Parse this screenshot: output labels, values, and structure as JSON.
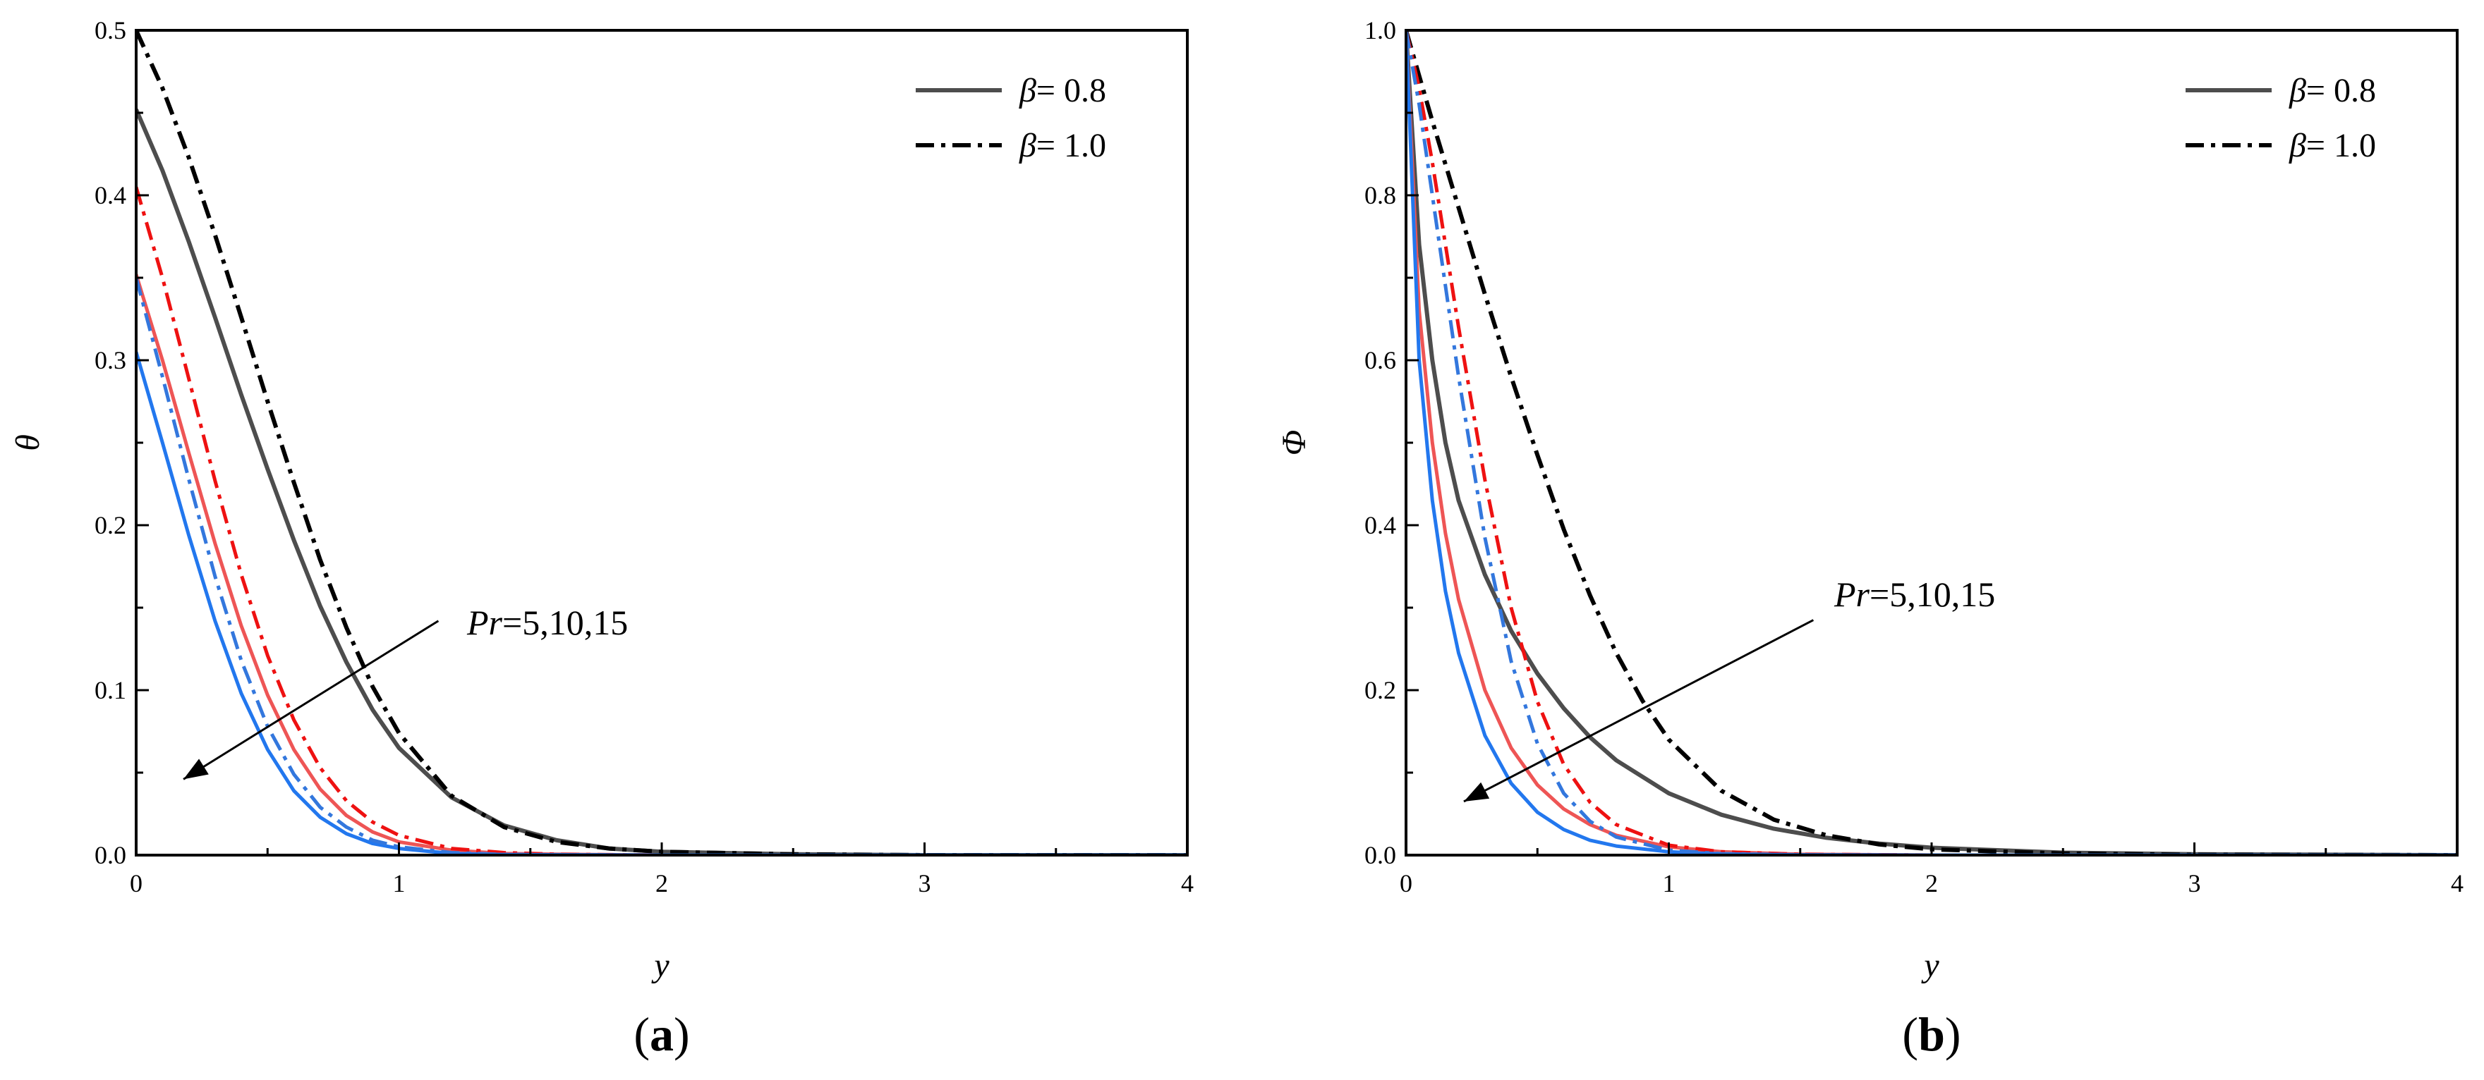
{
  "colors": {
    "gray": "#4d4d4d",
    "black": "#000000",
    "red_dash": "#ee1111",
    "red_solid": "#ee5555",
    "blue_dash": "#3377dd",
    "blue_solid": "#2277ee"
  },
  "chart_data": [
    {
      "type": "line",
      "panel_label": "(a)",
      "xlabel": "y",
      "ylabel": "θ",
      "xlim": [
        0,
        4
      ],
      "ylim": [
        0,
        0.5
      ],
      "xticks": [
        0,
        1,
        2,
        3,
        4
      ],
      "yticks": [
        0,
        0.1,
        0.2,
        0.3,
        0.4,
        0.5
      ],
      "xtick_labels": [
        "0",
        "1",
        "2",
        "3",
        "4"
      ],
      "ytick_labels": [
        "0.0",
        "0.1",
        "0.2",
        "0.3",
        "0.4",
        "0.5"
      ],
      "legend": {
        "position": "top-right",
        "entries": [
          {
            "symbol": "β",
            "text": "= 0.8",
            "style": "solid"
          },
          {
            "symbol": "β",
            "text": "= 1.0",
            "style": "dashdot"
          }
        ]
      },
      "annotation": {
        "text_italic": "Pr",
        "text": "=5,10,15",
        "arrow_from": [
          1.15,
          0.142
        ],
        "arrow_to": [
          0.18,
          0.046
        ]
      },
      "series": [
        {
          "style": "solid",
          "color": "gray",
          "x": [
            0,
            0.1,
            0.2,
            0.3,
            0.4,
            0.5,
            0.6,
            0.7,
            0.8,
            0.9,
            1.0,
            1.2,
            1.4,
            1.6,
            1.8,
            2.0,
            2.5,
            3.0,
            4.0
          ],
          "values": [
            0.452,
            0.415,
            0.372,
            0.326,
            0.279,
            0.234,
            0.191,
            0.151,
            0.117,
            0.088,
            0.065,
            0.035,
            0.018,
            0.009,
            0.004,
            0.002,
            0.0005,
            0,
            0
          ]
        },
        {
          "style": "dashdot",
          "color": "black",
          "x": [
            0,
            0.1,
            0.2,
            0.3,
            0.4,
            0.5,
            0.6,
            0.7,
            0.8,
            0.9,
            1.0,
            1.2,
            1.4,
            1.6,
            1.8,
            2.0,
            2.5,
            3.0,
            4.0
          ],
          "values": [
            0.5,
            0.465,
            0.423,
            0.376,
            0.326,
            0.275,
            0.226,
            0.179,
            0.138,
            0.102,
            0.074,
            0.036,
            0.017,
            0.008,
            0.004,
            0.002,
            0.0005,
            0,
            0
          ]
        },
        {
          "style": "solid",
          "color": "red_solid",
          "x": [
            0,
            0.1,
            0.2,
            0.3,
            0.4,
            0.5,
            0.6,
            0.7,
            0.8,
            0.9,
            1.0,
            1.2,
            1.4,
            1.6,
            2.0,
            3.0,
            4.0
          ],
          "values": [
            0.352,
            0.3,
            0.244,
            0.189,
            0.139,
            0.097,
            0.064,
            0.04,
            0.024,
            0.014,
            0.008,
            0.003,
            0.001,
            0.0005,
            0,
            0,
            0
          ]
        },
        {
          "style": "dashdot",
          "color": "red_dash",
          "x": [
            0,
            0.1,
            0.2,
            0.3,
            0.4,
            0.5,
            0.6,
            0.7,
            0.8,
            0.9,
            1.0,
            1.2,
            1.4,
            1.6,
            2.0,
            3.0,
            4.0
          ],
          "values": [
            0.405,
            0.35,
            0.289,
            0.227,
            0.17,
            0.121,
            0.082,
            0.053,
            0.033,
            0.02,
            0.012,
            0.004,
            0.0015,
            0.0005,
            0,
            0,
            0
          ]
        },
        {
          "style": "solid",
          "color": "blue_solid",
          "x": [
            0,
            0.1,
            0.2,
            0.3,
            0.4,
            0.5,
            0.6,
            0.7,
            0.8,
            0.9,
            1.0,
            1.2,
            1.4,
            2.0,
            3.0,
            4.0
          ],
          "values": [
            0.305,
            0.25,
            0.194,
            0.142,
            0.098,
            0.064,
            0.039,
            0.023,
            0.013,
            0.007,
            0.004,
            0.001,
            0.0003,
            0,
            0,
            0
          ]
        },
        {
          "style": "dashdot",
          "color": "blue_dash",
          "x": [
            0,
            0.1,
            0.2,
            0.3,
            0.4,
            0.5,
            0.6,
            0.7,
            0.8,
            0.9,
            1.0,
            1.2,
            1.4,
            2.0,
            3.0,
            4.0
          ],
          "values": [
            0.35,
            0.29,
            0.228,
            0.169,
            0.118,
            0.078,
            0.049,
            0.029,
            0.017,
            0.009,
            0.005,
            0.0015,
            0.0004,
            0,
            0,
            0
          ]
        }
      ]
    },
    {
      "type": "line",
      "panel_label": "(b)",
      "xlabel": "y",
      "ylabel": "Φ",
      "xlim": [
        0,
        4
      ],
      "ylim": [
        0,
        1.0
      ],
      "xticks": [
        0,
        1,
        2,
        3,
        4
      ],
      "yticks": [
        0,
        0.2,
        0.4,
        0.6,
        0.8,
        1.0
      ],
      "xtick_labels": [
        "0",
        "1",
        "2",
        "3",
        "4"
      ],
      "ytick_labels": [
        "0.0",
        "0.2",
        "0.4",
        "0.6",
        "0.8",
        "1.0"
      ],
      "legend": {
        "position": "top-right",
        "entries": [
          {
            "symbol": "β",
            "text": "= 0.8",
            "style": "solid"
          },
          {
            "symbol": "β",
            "text": "= 1.0",
            "style": "dashdot"
          }
        ]
      },
      "annotation": {
        "text_italic": "Pr",
        "text": "=5,10,15",
        "arrow_from": [
          1.55,
          0.285
        ],
        "arrow_to": [
          0.22,
          0.065
        ]
      },
      "series": [
        {
          "style": "solid",
          "color": "gray",
          "x": [
            0,
            0.05,
            0.1,
            0.15,
            0.2,
            0.3,
            0.4,
            0.5,
            0.6,
            0.7,
            0.8,
            1.0,
            1.2,
            1.4,
            1.6,
            1.8,
            2.0,
            2.5,
            3.0,
            4.0
          ],
          "values": [
            1.0,
            0.74,
            0.6,
            0.5,
            0.43,
            0.34,
            0.272,
            0.22,
            0.178,
            0.143,
            0.115,
            0.075,
            0.049,
            0.032,
            0.021,
            0.014,
            0.009,
            0.003,
            0.001,
            0
          ]
        },
        {
          "style": "dashdot",
          "color": "black",
          "x": [
            0,
            0.05,
            0.1,
            0.2,
            0.3,
            0.4,
            0.5,
            0.6,
            0.7,
            0.8,
            0.9,
            1.0,
            1.2,
            1.4,
            1.6,
            1.8,
            2.0,
            2.5,
            3.0,
            4.0
          ],
          "values": [
            1.0,
            0.945,
            0.89,
            0.785,
            0.68,
            0.58,
            0.485,
            0.395,
            0.315,
            0.245,
            0.187,
            0.14,
            0.078,
            0.043,
            0.024,
            0.013,
            0.007,
            0.002,
            0.0005,
            0
          ]
        },
        {
          "style": "solid",
          "color": "red_solid",
          "x": [
            0,
            0.05,
            0.1,
            0.15,
            0.2,
            0.3,
            0.4,
            0.5,
            0.6,
            0.7,
            0.8,
            1.0,
            1.2,
            1.5,
            2.0,
            3.0,
            4.0
          ],
          "values": [
            1.0,
            0.66,
            0.5,
            0.39,
            0.31,
            0.2,
            0.13,
            0.085,
            0.056,
            0.037,
            0.024,
            0.01,
            0.004,
            0.001,
            0,
            0,
            0
          ]
        },
        {
          "style": "dashdot",
          "color": "red_dash",
          "x": [
            0,
            0.05,
            0.1,
            0.15,
            0.2,
            0.3,
            0.4,
            0.5,
            0.6,
            0.7,
            0.8,
            1.0,
            1.2,
            1.5,
            2.0,
            3.0,
            4.0
          ],
          "values": [
            1.0,
            0.93,
            0.84,
            0.74,
            0.64,
            0.455,
            0.3,
            0.186,
            0.11,
            0.064,
            0.037,
            0.012,
            0.004,
            0.001,
            0,
            0,
            0
          ]
        },
        {
          "style": "solid",
          "color": "blue_solid",
          "x": [
            0,
            0.05,
            0.1,
            0.15,
            0.2,
            0.3,
            0.4,
            0.5,
            0.6,
            0.7,
            0.8,
            1.0,
            1.2,
            1.5,
            2.0,
            3.0,
            4.0
          ],
          "values": [
            1.0,
            0.6,
            0.43,
            0.32,
            0.245,
            0.145,
            0.087,
            0.052,
            0.031,
            0.018,
            0.011,
            0.004,
            0.0014,
            0.0003,
            0,
            0,
            0
          ]
        },
        {
          "style": "dashdot",
          "color": "blue_dash",
          "x": [
            0,
            0.05,
            0.1,
            0.15,
            0.2,
            0.3,
            0.4,
            0.5,
            0.6,
            0.7,
            0.8,
            1.0,
            1.2,
            1.5,
            2.0,
            3.0,
            4.0
          ],
          "values": [
            1.0,
            0.91,
            0.8,
            0.69,
            0.58,
            0.385,
            0.235,
            0.135,
            0.075,
            0.041,
            0.022,
            0.006,
            0.0017,
            0.0003,
            0,
            0,
            0
          ]
        }
      ]
    }
  ]
}
